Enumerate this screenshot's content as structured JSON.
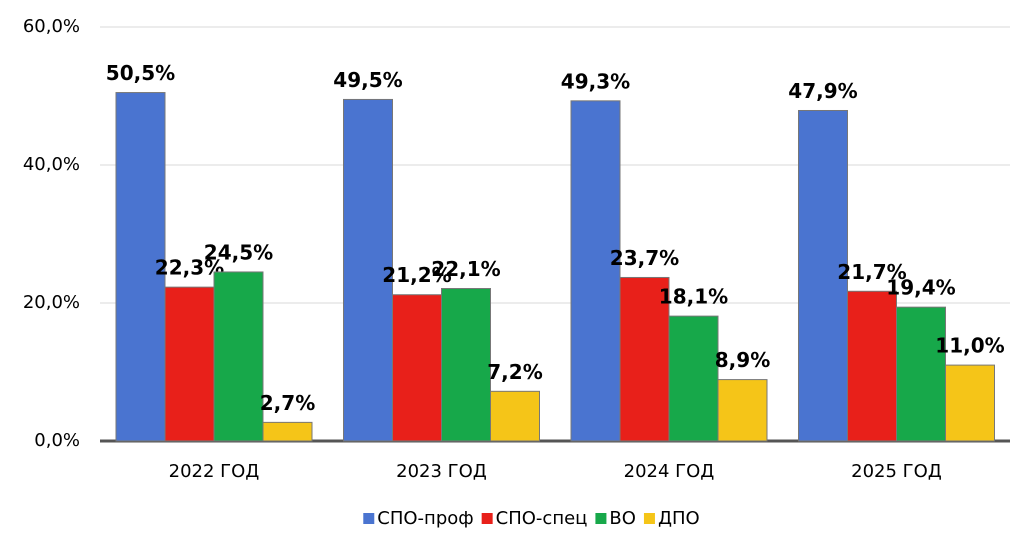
{
  "chart_data": {
    "type": "bar",
    "categories": [
      "2022 ГОД",
      "2023 ГОД",
      "2024 ГОД",
      "2025 ГОД"
    ],
    "series": [
      {
        "name": "СПО-проф",
        "color": "#4a74d0",
        "values": [
          50.5,
          49.5,
          49.3,
          47.9
        ],
        "value_labels": [
          "50,5%",
          "49,5%",
          "49,3%",
          "47,9%"
        ]
      },
      {
        "name": "СПО-спец",
        "color": "#e8201a",
        "values": [
          22.3,
          21.2,
          23.7,
          21.7
        ],
        "value_labels": [
          "22,3%",
          "21,2%",
          "23,7%",
          "21,7%"
        ]
      },
      {
        "name": "ВО",
        "color": "#17a84a",
        "values": [
          24.5,
          22.1,
          18.1,
          19.4
        ],
        "value_labels": [
          "24,5%",
          "22,1%",
          "18,1%",
          "19,4%"
        ]
      },
      {
        "name": "ДПО",
        "color": "#f5c518",
        "values": [
          2.7,
          7.2,
          8.9,
          11.0
        ],
        "value_labels": [
          "2,7%",
          "7,2%",
          "8,9%",
          "11,0%"
        ]
      }
    ],
    "ylim": [
      0,
      60
    ],
    "yticks": [
      {
        "value": 0,
        "label": "0,0%"
      },
      {
        "value": 20,
        "label": "20,0%"
      },
      {
        "value": 40,
        "label": "40,0%"
      },
      {
        "value": 60,
        "label": "60,0%"
      }
    ],
    "grid": true,
    "legend": "bottom"
  }
}
